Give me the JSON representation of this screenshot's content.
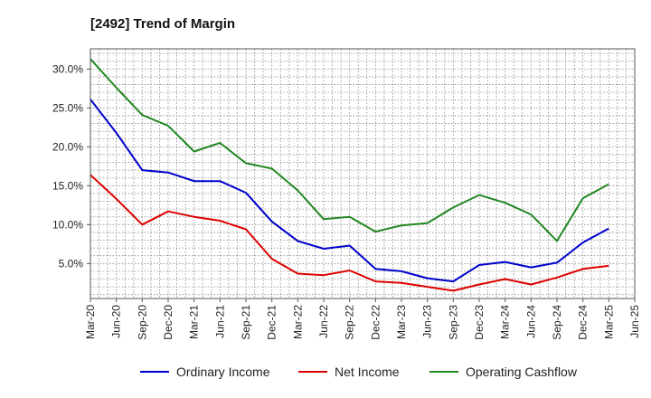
{
  "chart_data": {
    "type": "line",
    "title": "[2492]  Trend of Margin",
    "xlabel": "",
    "ylabel": "",
    "x": [
      "Mar-20",
      "Jun-20",
      "Sep-20",
      "Dec-20",
      "Mar-21",
      "Jun-21",
      "Sep-21",
      "Dec-21",
      "Mar-22",
      "Jun-22",
      "Sep-22",
      "Dec-22",
      "Mar-23",
      "Jun-23",
      "Sep-23",
      "Dec-23",
      "Mar-24",
      "Jun-24",
      "Sep-24",
      "Dec-24",
      "Mar-25"
    ],
    "x_ticks": [
      "Mar-20",
      "Jun-20",
      "Sep-20",
      "Dec-20",
      "Mar-21",
      "Jun-21",
      "Sep-21",
      "Dec-21",
      "Mar-22",
      "Jun-22",
      "Sep-22",
      "Dec-22",
      "Mar-23",
      "Jun-23",
      "Sep-23",
      "Dec-23",
      "Mar-24",
      "Jun-24",
      "Sep-24",
      "Dec-24",
      "Mar-25",
      "Jun-25"
    ],
    "y_ticks": [
      5,
      10,
      15,
      20,
      25,
      30
    ],
    "y_tick_labels": [
      "5.0%",
      "10.0%",
      "15.0%",
      "20.0%",
      "25.0%",
      "30.0%"
    ],
    "ylim": [
      0.5,
      32.6
    ],
    "grid": true,
    "legend": "bottom",
    "series": [
      {
        "name": "Ordinary Income",
        "color": "#0000cc",
        "values": [
          26.1,
          21.8,
          17.0,
          16.7,
          15.6,
          15.6,
          14.1,
          10.4,
          7.9,
          6.9,
          7.3,
          4.3,
          4.0,
          3.1,
          2.7,
          4.8,
          5.2,
          4.5,
          5.1,
          7.7,
          9.5
        ]
      },
      {
        "name": "Net Income",
        "color": "#dd0000",
        "values": [
          16.4,
          13.3,
          10.0,
          11.7,
          11.0,
          10.5,
          9.4,
          5.6,
          3.7,
          3.5,
          4.1,
          2.7,
          2.5,
          2.0,
          1.5,
          2.3,
          3.0,
          2.3,
          3.2,
          4.3,
          4.7
        ]
      },
      {
        "name": "Operating Cashflow",
        "color": "#228822",
        "values": [
          31.3,
          27.6,
          24.1,
          22.7,
          19.4,
          20.5,
          17.9,
          17.2,
          14.4,
          10.7,
          11.0,
          9.1,
          9.9,
          10.2,
          12.2,
          13.8,
          12.8,
          11.3,
          7.9,
          13.4,
          15.2
        ]
      }
    ]
  }
}
